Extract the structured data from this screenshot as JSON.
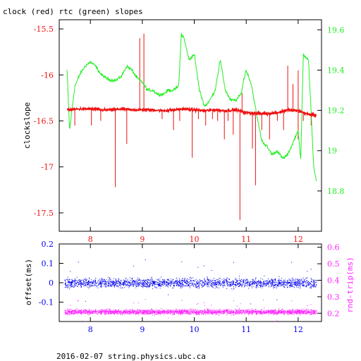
{
  "title": "clock (red) rtc (green) slopes",
  "footer": "2016-02-07 string.physics.ubc.ca",
  "colors": {
    "clock": "#ee1111",
    "rtc": "#22ee22",
    "offset": "#0000ee",
    "roundtrip": "#ff22ff",
    "axis": "#000000"
  },
  "chart_data": [
    {
      "type": "line",
      "title": "clock (red) rtc (green) slopes",
      "ylabel": "clockslope",
      "y2label": "",
      "xlim": [
        7.4,
        12.45
      ],
      "ylim": [
        -17.7,
        -15.4
      ],
      "y2lim": [
        18.6,
        19.65
      ],
      "xticks": [
        8,
        9,
        10,
        11,
        12
      ],
      "xtick_labels": [
        "8",
        "9",
        "10",
        "11",
        "12"
      ],
      "yticks": [
        -15.5,
        -16,
        -16.5,
        -17,
        -17.5
      ],
      "ytick_labels": [
        "-15.5",
        "-16",
        "-16.5",
        "-17",
        "-17.5"
      ],
      "y2ticks": [
        19.6,
        19.4,
        19.2,
        19.0,
        18.8
      ],
      "y2tick_labels": [
        "19.6",
        "19.4",
        "19.2",
        "19",
        "18.8"
      ],
      "grid": false,
      "series": [
        {
          "name": "clock",
          "axis": "left",
          "color": "#ee1111",
          "x": [
            7.55,
            7.8,
            8.0,
            8.2,
            8.4,
            8.6,
            8.8,
            9.0,
            9.2,
            9.4,
            9.6,
            9.8,
            10.0,
            10.2,
            10.4,
            10.6,
            10.8,
            11.0,
            11.2,
            11.4,
            11.6,
            11.8,
            12.0,
            12.2,
            12.35
          ],
          "y": [
            -16.38,
            -16.37,
            -16.37,
            -16.38,
            -16.38,
            -16.37,
            -16.38,
            -16.38,
            -16.38,
            -16.39,
            -16.38,
            -16.37,
            -16.38,
            -16.39,
            -16.38,
            -16.39,
            -16.38,
            -16.41,
            -16.42,
            -16.42,
            -16.41,
            -16.38,
            -16.39,
            -16.43,
            -16.44
          ]
        },
        {
          "name": "rtc",
          "axis": "right",
          "color": "#22ee22",
          "x": [
            7.55,
            7.6,
            7.7,
            7.8,
            7.9,
            8.0,
            8.1,
            8.2,
            8.3,
            8.4,
            8.5,
            8.6,
            8.7,
            8.8,
            8.9,
            9.0,
            9.1,
            9.2,
            9.3,
            9.4,
            9.5,
            9.6,
            9.7,
            9.75,
            9.8,
            9.9,
            10.0,
            10.1,
            10.2,
            10.3,
            10.4,
            10.5,
            10.6,
            10.7,
            10.8,
            10.9,
            10.95,
            11.0,
            11.1,
            11.2,
            11.3,
            11.4,
            11.5,
            11.6,
            11.7,
            11.8,
            11.9,
            12.0,
            12.05,
            12.1,
            12.2,
            12.3,
            12.35
          ],
          "y": [
            19.4,
            19.1,
            19.32,
            19.38,
            19.42,
            19.44,
            19.42,
            19.38,
            19.36,
            19.35,
            19.35,
            19.37,
            19.42,
            19.4,
            19.36,
            19.34,
            19.3,
            19.3,
            19.28,
            19.28,
            19.3,
            19.3,
            19.32,
            19.58,
            19.56,
            19.45,
            19.48,
            19.3,
            19.22,
            19.25,
            19.3,
            19.45,
            19.3,
            19.25,
            19.25,
            19.28,
            19.35,
            19.4,
            19.33,
            19.18,
            19.05,
            19.02,
            18.98,
            19.0,
            18.96,
            18.98,
            19.04,
            19.1,
            18.95,
            19.48,
            19.45,
            18.92,
            18.85
          ]
        }
      ]
    },
    {
      "type": "scatter",
      "title": "",
      "ylabel": "offset(ms)",
      "y2label": "rnd-trip(ms)",
      "xlim": [
        7.4,
        12.45
      ],
      "ylim": [
        -0.2,
        0.2
      ],
      "y2lim": [
        0.15,
        0.62
      ],
      "xticks": [
        8,
        9,
        10,
        11,
        12
      ],
      "xtick_labels": [
        "8",
        "9",
        "10",
        "11",
        "12"
      ],
      "yticks": [
        0.2,
        0.1,
        0,
        -0.1
      ],
      "ytick_labels": [
        "0.2",
        "0.1",
        "0",
        "-0.1"
      ],
      "y2ticks": [
        0.6,
        0.5,
        0.4,
        0.3,
        0.2
      ],
      "y2tick_labels": [
        "0.6",
        "0.5",
        "0.4",
        "0.3",
        "0.2"
      ],
      "grid": false,
      "series": [
        {
          "name": "offset",
          "axis": "left",
          "color": "#0000ee",
          "x_range": [
            7.5,
            12.35
          ],
          "center": 0.0,
          "spread": 0.035
        },
        {
          "name": "rnd-trip",
          "axis": "right",
          "color": "#ff22ff",
          "x_range": [
            7.5,
            12.35
          ],
          "center": 0.21,
          "spread": 0.022
        }
      ]
    }
  ]
}
